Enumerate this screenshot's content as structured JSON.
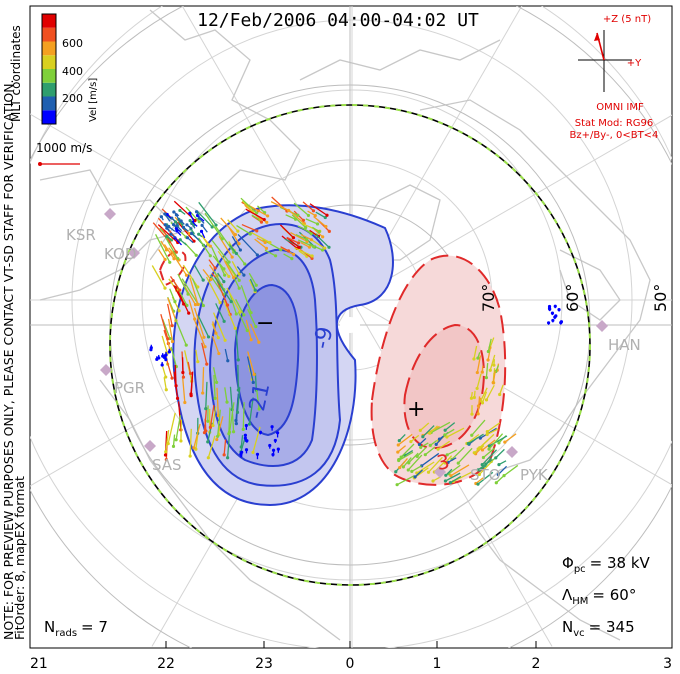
{
  "title": "12/Feb/2006 04:00-04:02 UT",
  "colorbar": {
    "unit_label": "Vel [m/s]",
    "tick_labels": [
      "600",
      "400",
      "200"
    ],
    "colors": [
      "#0000ff",
      "#1f5fb0",
      "#2f9e6e",
      "#7fcf3a",
      "#d8d020",
      "#f4a020",
      "#f05020",
      "#e00000"
    ]
  },
  "coordinates_label": "MLT coordinates",
  "reference_vector_label": "1000 m/s",
  "side_note_lines": [
    "NOTE: FOR PREVIEW PURPOSES ONLY, PLEASE CONTACT VT-SD STAFF FOR VERIFICATION.",
    "FitOrder: 8, mapEX format"
  ],
  "imf": {
    "z_label": "+Z (5 nT)",
    "y_label": "+Y",
    "source_label": "OMNI IMF",
    "model_label": "Stat Mod: RG96",
    "condition_label": "Bz+/By-, 0<BT<4"
  },
  "stations": [
    "KSR",
    "KOD",
    "PGR",
    "SAS",
    "STO",
    "PYK",
    "HAN"
  ],
  "latitude_labels": [
    "70°",
    "60°",
    "50°"
  ],
  "contour_labels": [
    "-21",
    "-9",
    "3"
  ],
  "markers": {
    "min": "−",
    "max": "+"
  },
  "stats": {
    "phi_pc": {
      "sym": "Φ",
      "sub": "pc",
      "value": "= 38 kV"
    },
    "lambda_hm": {
      "sym": "Λ",
      "sub": "HM",
      "value": "= 60°"
    },
    "n_vc": {
      "sym": "N",
      "sub": "vc",
      "value": "= 345"
    },
    "n_rads": {
      "sym": "N",
      "sub": "rads",
      "value": "= 7"
    }
  },
  "mlt_axis": [
    "21",
    "22",
    "23",
    "0",
    "1",
    "2",
    "3"
  ]
}
